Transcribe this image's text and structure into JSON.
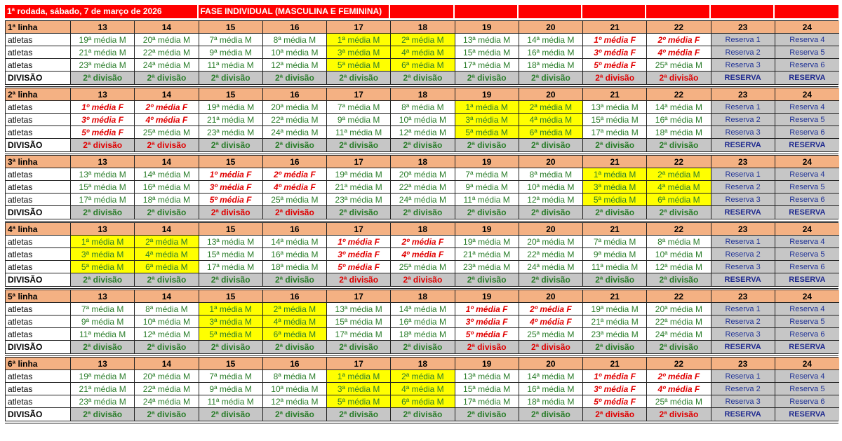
{
  "title": {
    "round": "1ª rodada, sábado, 7 de março de 2026",
    "phase": "FASE INDIVIDUAL (MASCULINA E FEMININA)"
  },
  "row_label": "atletas",
  "division_label": "DIVISÃO",
  "colors": {
    "header": "#f4b183",
    "male": "#2a7d2a",
    "female": "#e00000",
    "highlight": "#ffff00",
    "reserve": "#c6c6c6",
    "title": "#ff0000"
  },
  "blocks": [
    {
      "label": "1ª linha",
      "columns": [
        {
          "n": "13",
          "type": "male",
          "athletes": [
            "19ª média M",
            "21ª média M",
            "23ª média M"
          ],
          "division": "2ª divisão"
        },
        {
          "n": "14",
          "type": "male",
          "athletes": [
            "20ª média M",
            "22ª média M",
            "24ª média M"
          ],
          "division": "2ª divisão"
        },
        {
          "n": "15",
          "type": "male",
          "athletes": [
            "7ª média M",
            "9ª média M",
            "11ª média M"
          ],
          "division": "2ª divisão"
        },
        {
          "n": "16",
          "type": "male",
          "athletes": [
            "8ª média M",
            "10ª média M",
            "12ª média M"
          ],
          "division": "2ª divisão"
        },
        {
          "n": "17",
          "type": "yellow",
          "athletes": [
            "1ª média M",
            "3ª média M",
            "5ª média M"
          ],
          "division": "2ª divisão"
        },
        {
          "n": "18",
          "type": "yellow",
          "athletes": [
            "2ª média M",
            "4ª média M",
            "6ª média M"
          ],
          "division": "2ª divisão"
        },
        {
          "n": "19",
          "type": "male",
          "athletes": [
            "13ª média M",
            "15ª média M",
            "17ª média M"
          ],
          "division": "2ª divisão"
        },
        {
          "n": "20",
          "type": "male",
          "athletes": [
            "14ª média M",
            "16ª média M",
            "18ª média M"
          ],
          "division": "2ª divisão"
        },
        {
          "n": "21",
          "type": "female",
          "athletes": [
            "1º média F",
            "3º média F",
            "5º média F"
          ],
          "division": "2ª divisão"
        },
        {
          "n": "22",
          "type": "female",
          "athletes": [
            "2º média F",
            "4º média F",
            "25ª média M"
          ],
          "division": "2ª divisão"
        },
        {
          "n": "23",
          "type": "reserve",
          "athletes": [
            "Reserva 1",
            "Reserva 2",
            "Reserva 3"
          ],
          "division": "RESERVA"
        },
        {
          "n": "24",
          "type": "reserve",
          "athletes": [
            "Reserva 4",
            "Reserva 5",
            "Reserva 6"
          ],
          "division": "RESERVA"
        }
      ]
    },
    {
      "label": "2ª linha",
      "columns": [
        {
          "n": "13",
          "type": "female",
          "athletes": [
            "1º média F",
            "3º média F",
            "5º média F"
          ],
          "division": "2ª divisão"
        },
        {
          "n": "14",
          "type": "female",
          "athletes": [
            "2º média F",
            "4º média F",
            "25ª média M"
          ],
          "division": "2ª divisão"
        },
        {
          "n": "15",
          "type": "male",
          "athletes": [
            "19ª média M",
            "21ª média M",
            "23ª média M"
          ],
          "division": "2ª divisão"
        },
        {
          "n": "16",
          "type": "male",
          "athletes": [
            "20ª média M",
            "22ª média M",
            "24ª média M"
          ],
          "division": "2ª divisão"
        },
        {
          "n": "17",
          "type": "male",
          "athletes": [
            "7ª média M",
            "9ª média M",
            "11ª média M"
          ],
          "division": "2ª divisão"
        },
        {
          "n": "18",
          "type": "male",
          "athletes": [
            "8ª média M",
            "10ª média M",
            "12ª média M"
          ],
          "division": "2ª divisão"
        },
        {
          "n": "19",
          "type": "yellow",
          "athletes": [
            "1ª média M",
            "3ª média M",
            "5ª média M"
          ],
          "division": "2ª divisão"
        },
        {
          "n": "20",
          "type": "yellow",
          "athletes": [
            "2ª média M",
            "4ª média M",
            "6ª média M"
          ],
          "division": "2ª divisão"
        },
        {
          "n": "21",
          "type": "male",
          "athletes": [
            "13ª média M",
            "15ª média M",
            "17ª média M"
          ],
          "division": "2ª divisão"
        },
        {
          "n": "22",
          "type": "male",
          "athletes": [
            "14ª média M",
            "16ª média M",
            "18ª média M"
          ],
          "division": "2ª divisão"
        },
        {
          "n": "23",
          "type": "reserve",
          "athletes": [
            "Reserva 1",
            "Reserva 2",
            "Reserva 3"
          ],
          "division": "RESERVA"
        },
        {
          "n": "24",
          "type": "reserve",
          "athletes": [
            "Reserva 4",
            "Reserva 5",
            "Reserva 6"
          ],
          "division": "RESERVA"
        }
      ]
    },
    {
      "label": "3ª linha",
      "columns": [
        {
          "n": "13",
          "type": "male",
          "athletes": [
            "13ª média M",
            "15ª média M",
            "17ª média M"
          ],
          "division": "2ª divisão"
        },
        {
          "n": "14",
          "type": "male",
          "athletes": [
            "14ª média M",
            "16ª média M",
            "18ª média M"
          ],
          "division": "2ª divisão"
        },
        {
          "n": "15",
          "type": "female",
          "athletes": [
            "1º média F",
            "3º média F",
            "5º média F"
          ],
          "division": "2ª divisão"
        },
        {
          "n": "16",
          "type": "female",
          "athletes": [
            "2º média F",
            "4º média F",
            "25ª média M"
          ],
          "division": "2ª divisão"
        },
        {
          "n": "17",
          "type": "male",
          "athletes": [
            "19ª média M",
            "21ª média M",
            "23ª média M"
          ],
          "division": "2ª divisão"
        },
        {
          "n": "18",
          "type": "male",
          "athletes": [
            "20ª média M",
            "22ª média M",
            "24ª média M"
          ],
          "division": "2ª divisão"
        },
        {
          "n": "19",
          "type": "male",
          "athletes": [
            "7ª média M",
            "9ª média M",
            "11ª média M"
          ],
          "division": "2ª divisão"
        },
        {
          "n": "20",
          "type": "male",
          "athletes": [
            "8ª média M",
            "10ª média M",
            "12ª média M"
          ],
          "division": "2ª divisão"
        },
        {
          "n": "21",
          "type": "yellow",
          "athletes": [
            "1ª média M",
            "3ª média M",
            "5ª média M"
          ],
          "division": "2ª divisão"
        },
        {
          "n": "22",
          "type": "yellow",
          "athletes": [
            "2ª média M",
            "4ª média M",
            "6ª média M"
          ],
          "division": "2ª divisão"
        },
        {
          "n": "23",
          "type": "reserve",
          "athletes": [
            "Reserva 1",
            "Reserva 2",
            "Reserva 3"
          ],
          "division": "RESERVA"
        },
        {
          "n": "24",
          "type": "reserve",
          "athletes": [
            "Reserva 4",
            "Reserva 5",
            "Reserva 6"
          ],
          "division": "RESERVA"
        }
      ]
    },
    {
      "label": "4ª linha",
      "columns": [
        {
          "n": "13",
          "type": "yellow",
          "athletes": [
            "1ª média M",
            "3ª média M",
            "5ª média M"
          ],
          "division": "2ª divisão"
        },
        {
          "n": "14",
          "type": "yellow",
          "athletes": [
            "2ª média M",
            "4ª média M",
            "6ª média M"
          ],
          "division": "2ª divisão"
        },
        {
          "n": "15",
          "type": "male",
          "athletes": [
            "13ª média M",
            "15ª média M",
            "17ª média M"
          ],
          "division": "2ª divisão"
        },
        {
          "n": "16",
          "type": "male",
          "athletes": [
            "14ª média M",
            "16ª média M",
            "18ª média M"
          ],
          "division": "2ª divisão"
        },
        {
          "n": "17",
          "type": "female",
          "athletes": [
            "1º média F",
            "3º média F",
            "5º média F"
          ],
          "division": "2ª divisão"
        },
        {
          "n": "18",
          "type": "female",
          "athletes": [
            "2º média F",
            "4º média F",
            "25ª média M"
          ],
          "division": "2ª divisão"
        },
        {
          "n": "19",
          "type": "male",
          "athletes": [
            "19ª média M",
            "21ª média M",
            "23ª média M"
          ],
          "division": "2ª divisão"
        },
        {
          "n": "20",
          "type": "male",
          "athletes": [
            "20ª média M",
            "22ª média M",
            "24ª média M"
          ],
          "division": "2ª divisão"
        },
        {
          "n": "21",
          "type": "male",
          "athletes": [
            "7ª média M",
            "9ª média M",
            "11ª média M"
          ],
          "division": "2ª divisão"
        },
        {
          "n": "22",
          "type": "male",
          "athletes": [
            "8ª média M",
            "10ª média M",
            "12ª média M"
          ],
          "division": "2ª divisão"
        },
        {
          "n": "23",
          "type": "reserve",
          "athletes": [
            "Reserva 1",
            "Reserva 2",
            "Reserva 3"
          ],
          "division": "RESERVA"
        },
        {
          "n": "24",
          "type": "reserve",
          "athletes": [
            "Reserva 4",
            "Reserva 5",
            "Reserva 6"
          ],
          "division": "RESERVA"
        }
      ]
    },
    {
      "label": "5ª linha",
      "columns": [
        {
          "n": "13",
          "type": "male",
          "athletes": [
            "7ª média M",
            "9ª média M",
            "11ª média M"
          ],
          "division": "2ª divisão"
        },
        {
          "n": "14",
          "type": "male",
          "athletes": [
            "8ª média M",
            "10ª média M",
            "12ª média M"
          ],
          "division": "2ª divisão"
        },
        {
          "n": "15",
          "type": "yellow",
          "athletes": [
            "1ª média M",
            "3ª média M",
            "5ª média M"
          ],
          "division": "2ª divisão"
        },
        {
          "n": "16",
          "type": "yellow",
          "athletes": [
            "2ª média M",
            "4ª média M",
            "6ª média M"
          ],
          "division": "2ª divisão"
        },
        {
          "n": "17",
          "type": "male",
          "athletes": [
            "13ª média M",
            "15ª média M",
            "17ª média M"
          ],
          "division": "2ª divisão"
        },
        {
          "n": "18",
          "type": "male",
          "athletes": [
            "14ª média M",
            "16ª média M",
            "18ª média M"
          ],
          "division": "2ª divisão"
        },
        {
          "n": "19",
          "type": "female",
          "athletes": [
            "1º média F",
            "3º média F",
            "5º média F"
          ],
          "division": "2ª divisão"
        },
        {
          "n": "20",
          "type": "female",
          "athletes": [
            "2º média F",
            "4º média F",
            "25ª média M"
          ],
          "division": "2ª divisão"
        },
        {
          "n": "21",
          "type": "male",
          "athletes": [
            "19ª média M",
            "21ª média M",
            "23ª média M"
          ],
          "division": "2ª divisão"
        },
        {
          "n": "22",
          "type": "male",
          "athletes": [
            "20ª média M",
            "22ª média M",
            "24ª média M"
          ],
          "division": "2ª divisão"
        },
        {
          "n": "23",
          "type": "reserve",
          "athletes": [
            "Reserva 1",
            "Reserva 2",
            "Reserva 3"
          ],
          "division": "RESERVA"
        },
        {
          "n": "24",
          "type": "reserve",
          "athletes": [
            "Reserva 4",
            "Reserva 5",
            "Reserva 6"
          ],
          "division": "RESERVA"
        }
      ]
    },
    {
      "label": "6ª linha",
      "columns": [
        {
          "n": "13",
          "type": "male",
          "athletes": [
            "19ª média M",
            "21ª média M",
            "23ª média M"
          ],
          "division": "2ª divisão"
        },
        {
          "n": "14",
          "type": "male",
          "athletes": [
            "20ª média M",
            "22ª média M",
            "24ª média M"
          ],
          "division": "2ª divisão"
        },
        {
          "n": "15",
          "type": "male",
          "athletes": [
            "7ª média M",
            "9ª média M",
            "11ª média M"
          ],
          "division": "2ª divisão"
        },
        {
          "n": "16",
          "type": "male",
          "athletes": [
            "8ª média M",
            "10ª média M",
            "12ª média M"
          ],
          "division": "2ª divisão"
        },
        {
          "n": "17",
          "type": "yellow",
          "athletes": [
            "1ª média M",
            "3ª média M",
            "5ª média M"
          ],
          "division": "2ª divisão"
        },
        {
          "n": "18",
          "type": "yellow",
          "athletes": [
            "2ª média M",
            "4ª média M",
            "6ª média M"
          ],
          "division": "2ª divisão"
        },
        {
          "n": "19",
          "type": "male",
          "athletes": [
            "13ª média M",
            "15ª média M",
            "17ª média M"
          ],
          "division": "2ª divisão"
        },
        {
          "n": "20",
          "type": "male",
          "athletes": [
            "14ª média M",
            "16ª média M",
            "18ª média M"
          ],
          "division": "2ª divisão"
        },
        {
          "n": "21",
          "type": "female",
          "athletes": [
            "1º média F",
            "3º média F",
            "5º média F"
          ],
          "division": "2ª divisão"
        },
        {
          "n": "22",
          "type": "female",
          "athletes": [
            "2º média F",
            "4º média F",
            "25ª média M"
          ],
          "division": "2ª divisão"
        },
        {
          "n": "23",
          "type": "reserve",
          "athletes": [
            "Reserva 1",
            "Reserva 2",
            "Reserva 3"
          ],
          "division": "RESERVA"
        },
        {
          "n": "24",
          "type": "reserve",
          "athletes": [
            "Reserva 4",
            "Reserva 5",
            "Reserva 6"
          ],
          "division": "RESERVA"
        }
      ]
    }
  ]
}
